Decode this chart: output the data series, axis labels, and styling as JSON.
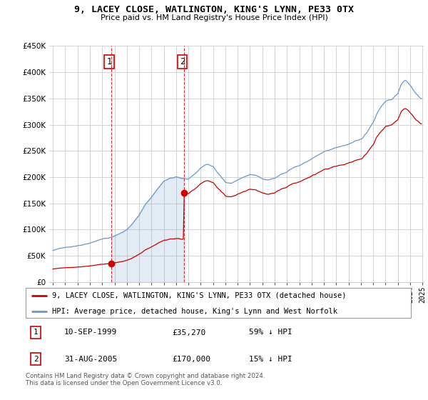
{
  "title": "9, LACEY CLOSE, WATLINGTON, KING'S LYNN, PE33 0TX",
  "subtitle": "Price paid vs. HM Land Registry's House Price Index (HPI)",
  "legend_label_red": "9, LACEY CLOSE, WATLINGTON, KING'S LYNN, PE33 0TX (detached house)",
  "legend_label_blue": "HPI: Average price, detached house, King's Lynn and West Norfolk",
  "transaction1_date": "10-SEP-1999",
  "transaction1_price": "£35,270",
  "transaction1_hpi": "59% ↓ HPI",
  "transaction2_date": "31-AUG-2005",
  "transaction2_price": "£170,000",
  "transaction2_hpi": "15% ↓ HPI",
  "footer": "Contains HM Land Registry data © Crown copyright and database right 2024.\nThis data is licensed under the Open Government Licence v3.0.",
  "ylim": [
    0,
    450000
  ],
  "yticks": [
    0,
    50000,
    100000,
    150000,
    200000,
    250000,
    300000,
    350000,
    400000,
    450000
  ],
  "color_red": "#cc0000",
  "color_blue": "#6699cc",
  "color_fill": "#ddeeff",
  "transaction1_x": 1999.71,
  "transaction1_y": 35270,
  "transaction2_x": 2005.66,
  "transaction2_y": 170000,
  "xmin": 1995.0,
  "xmax": 2025.1
}
